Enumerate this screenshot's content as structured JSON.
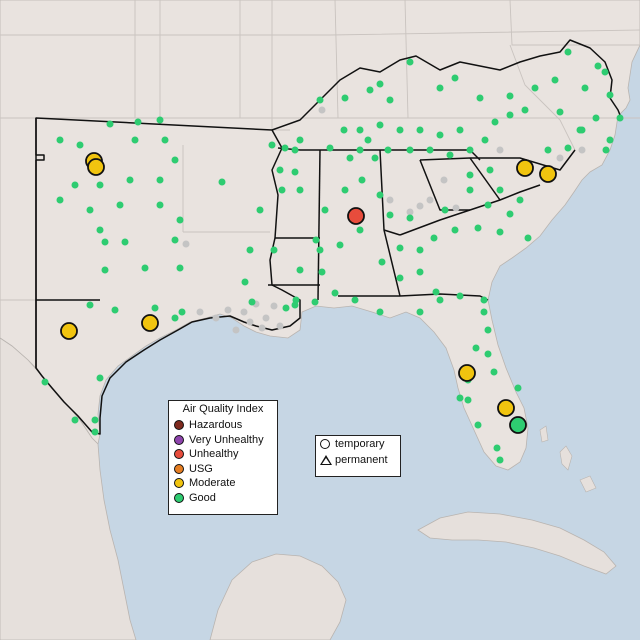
{
  "legend": {
    "title": "Air Quality Index",
    "categories": [
      {
        "label": "Hazardous",
        "color": "#7e2a1e"
      },
      {
        "label": "Very Unhealthy",
        "color": "#8e44ad"
      },
      {
        "label": "Unhealthy",
        "color": "#e74c3c"
      },
      {
        "label": "USG",
        "color": "#e67e22"
      },
      {
        "label": "Moderate",
        "color": "#f1c40f"
      },
      {
        "label": "Good",
        "color": "#2ecc71"
      }
    ]
  },
  "monitor_type_legend": {
    "temporary_label": "temporary",
    "permanent_label": "permanent"
  },
  "colors": {
    "ocean": "#c6d6e4",
    "land": "#e9e3df",
    "boundary": "#c9c3bf",
    "no_data": "#c4c4c4"
  }
}
